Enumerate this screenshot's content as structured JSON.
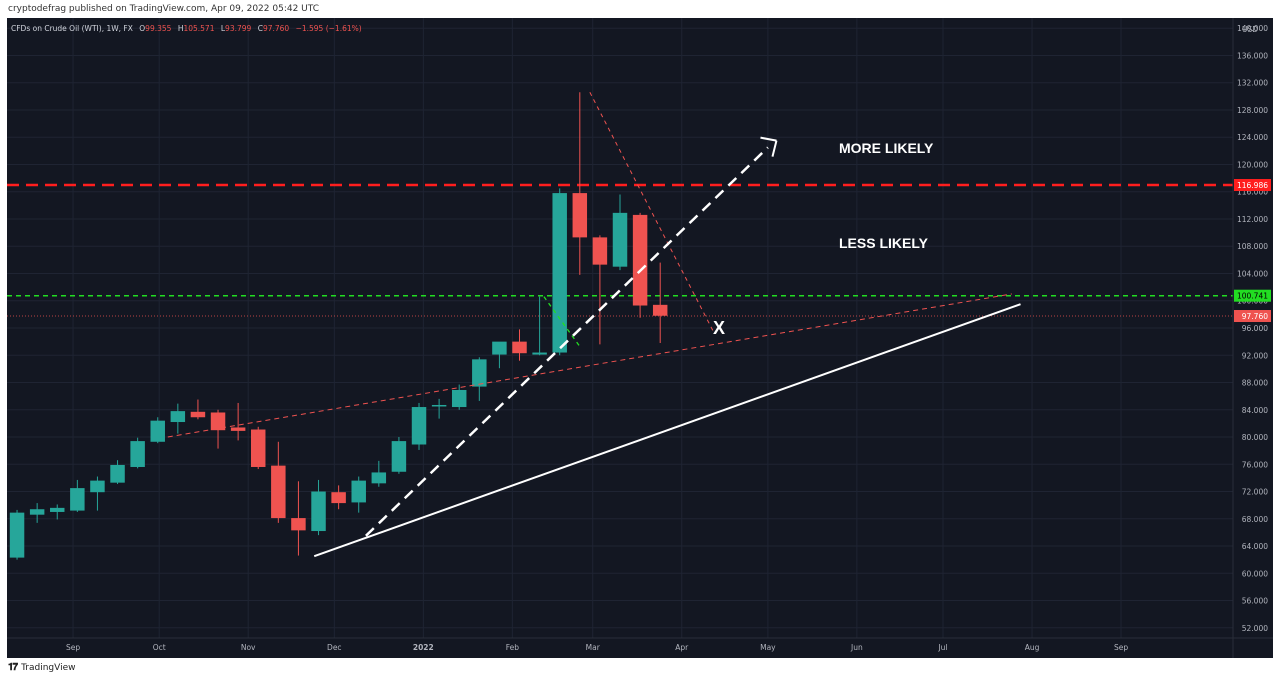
{
  "header": {
    "published": "cryptodefrag published on TradingView.com, Apr 09, 2022 05:42 UTC"
  },
  "footer": {
    "logo_text": "TradingView"
  },
  "legend": {
    "symbol": "CFDs on Crude Oil (WTI), 1W, FX",
    "open_label": "O",
    "open": "99.355",
    "high_label": "H",
    "high": "105.571",
    "low_label": "L",
    "low": "93.799",
    "close_label": "C",
    "close": "97.760",
    "change": "−1.595 (−1.61%)"
  },
  "colors": {
    "background": "#131722",
    "grid": "#1f2433",
    "up": "#26a69a",
    "down": "#ef5350",
    "resistance": "#ff1e1e",
    "support": "#22dd22",
    "annotation": "#ffffff",
    "axis_text": "#b2b5be"
  },
  "annotations": {
    "more_likely": "MORE LIKELY",
    "less_likely": "LESS LIKELY",
    "x_mark": "X"
  },
  "chart_data": {
    "type": "candlestick",
    "title": "CFDs on Crude Oil (WTI), 1W, FX",
    "currency": "USD",
    "ylim": [
      50.5,
      141.5
    ],
    "x_start": "2021-08-09",
    "x_end": "2022-10-10",
    "y_ticks": [
      "140.000",
      "136.000",
      "132.000",
      "128.000",
      "124.000",
      "120.000",
      "116.000",
      "112.000",
      "108.000",
      "104.000",
      "100.000",
      "96.000",
      "92.000",
      "88.000",
      "84.000",
      "80.000",
      "76.000",
      "72.000",
      "68.000",
      "64.000",
      "60.000",
      "56.000",
      "52.000"
    ],
    "x_ticks": [
      {
        "date": "2021-09-01",
        "label": "Sep"
      },
      {
        "date": "2021-10-01",
        "label": "Oct"
      },
      {
        "date": "2021-11-01",
        "label": "Nov"
      },
      {
        "date": "2021-12-01",
        "label": "Dec"
      },
      {
        "date": "2022-01-01",
        "label": "2022"
      },
      {
        "date": "2022-02-01",
        "label": "Feb"
      },
      {
        "date": "2022-03-01",
        "label": "Mar"
      },
      {
        "date": "2022-04-01",
        "label": "Apr"
      },
      {
        "date": "2022-05-01",
        "label": "May"
      },
      {
        "date": "2022-06-01",
        "label": "Jun"
      },
      {
        "date": "2022-07-01",
        "label": "Jul"
      },
      {
        "date": "2022-08-01",
        "label": "Aug"
      },
      {
        "date": "2022-09-01",
        "label": "Sep"
      }
    ],
    "candles": [
      {
        "date": "2021-08-09",
        "o": 62.3,
        "h": 69.3,
        "l": 62.0,
        "c": 68.9
      },
      {
        "date": "2021-08-16",
        "o": 68.6,
        "h": 70.3,
        "l": 67.4,
        "c": 69.4
      },
      {
        "date": "2021-08-23",
        "o": 69.0,
        "h": 70.1,
        "l": 67.9,
        "c": 69.6
      },
      {
        "date": "2021-08-30",
        "o": 69.2,
        "h": 73.7,
        "l": 69.0,
        "c": 72.5
      },
      {
        "date": "2021-09-06",
        "o": 71.9,
        "h": 74.2,
        "l": 69.2,
        "c": 73.6
      },
      {
        "date": "2021-09-13",
        "o": 73.3,
        "h": 76.6,
        "l": 73.1,
        "c": 75.9
      },
      {
        "date": "2021-09-20",
        "o": 75.6,
        "h": 79.9,
        "l": 75.4,
        "c": 79.4
      },
      {
        "date": "2021-09-27",
        "o": 79.3,
        "h": 82.9,
        "l": 79.1,
        "c": 82.4
      },
      {
        "date": "2021-10-04",
        "o": 82.2,
        "h": 84.9,
        "l": 80.5,
        "c": 83.8
      },
      {
        "date": "2021-10-11",
        "o": 83.7,
        "h": 85.5,
        "l": 82.6,
        "c": 82.9
      },
      {
        "date": "2021-10-18",
        "o": 83.6,
        "h": 84.0,
        "l": 78.3,
        "c": 81.0
      },
      {
        "date": "2021-10-25",
        "o": 81.4,
        "h": 85.0,
        "l": 79.5,
        "c": 80.9
      },
      {
        "date": "2021-11-01",
        "o": 81.1,
        "h": 81.5,
        "l": 75.3,
        "c": 75.6
      },
      {
        "date": "2021-11-08",
        "o": 75.8,
        "h": 79.3,
        "l": 67.4,
        "c": 68.1
      },
      {
        "date": "2021-11-15",
        "o": 68.1,
        "h": 73.5,
        "l": 62.6,
        "c": 66.3
      },
      {
        "date": "2021-11-22",
        "o": 66.2,
        "h": 73.7,
        "l": 65.6,
        "c": 72.0
      },
      {
        "date": "2021-11-29",
        "o": 71.9,
        "h": 72.9,
        "l": 69.4,
        "c": 70.3
      },
      {
        "date": "2021-12-06",
        "o": 70.4,
        "h": 74.2,
        "l": 68.9,
        "c": 73.6
      },
      {
        "date": "2021-12-13",
        "o": 73.2,
        "h": 76.5,
        "l": 72.7,
        "c": 74.8
      },
      {
        "date": "2021-12-20",
        "o": 74.9,
        "h": 80.0,
        "l": 74.6,
        "c": 79.4
      },
      {
        "date": "2021-12-27",
        "o": 78.9,
        "h": 85.0,
        "l": 78.1,
        "c": 84.4
      },
      {
        "date": "2022-01-03",
        "o": 84.5,
        "h": 85.6,
        "l": 82.7,
        "c": 84.7
      },
      {
        "date": "2022-01-10",
        "o": 84.4,
        "h": 87.7,
        "l": 84.0,
        "c": 86.9
      },
      {
        "date": "2022-01-17",
        "o": 87.4,
        "h": 91.7,
        "l": 85.3,
        "c": 91.4
      },
      {
        "date": "2022-01-24",
        "o": 92.1,
        "h": 93.7,
        "l": 90.1,
        "c": 94.0
      },
      {
        "date": "2022-01-31",
        "o": 94.0,
        "h": 95.8,
        "l": 91.2,
        "c": 92.3
      },
      {
        "date": "2022-02-07",
        "o": 92.1,
        "h": 100.6,
        "l": 92.0,
        "c": 92.4
      },
      {
        "date": "2022-02-14",
        "o": 92.4,
        "h": 116.5,
        "l": 92.0,
        "c": 115.8
      },
      {
        "date": "2022-02-21",
        "o": 115.8,
        "h": 130.6,
        "l": 103.8,
        "c": 109.3
      },
      {
        "date": "2022-02-28",
        "o": 109.3,
        "h": 109.6,
        "l": 93.6,
        "c": 105.3
      },
      {
        "date": "2022-03-07",
        "o": 105.0,
        "h": 115.6,
        "l": 104.5,
        "c": 112.9
      },
      {
        "date": "2022-03-14",
        "o": 112.6,
        "h": 112.9,
        "l": 97.5,
        "c": 99.3
      },
      {
        "date": "2022-03-21",
        "o": 99.4,
        "h": 105.6,
        "l": 93.8,
        "c": 97.8
      }
    ],
    "levels": [
      {
        "value": 116.986,
        "label": "116.986",
        "style": "dashed-red"
      },
      {
        "value": 100.741,
        "label": "100.741",
        "style": "dashed-green"
      },
      {
        "value": 97.76,
        "label": "97.760",
        "style": "dotted-price"
      }
    ]
  }
}
